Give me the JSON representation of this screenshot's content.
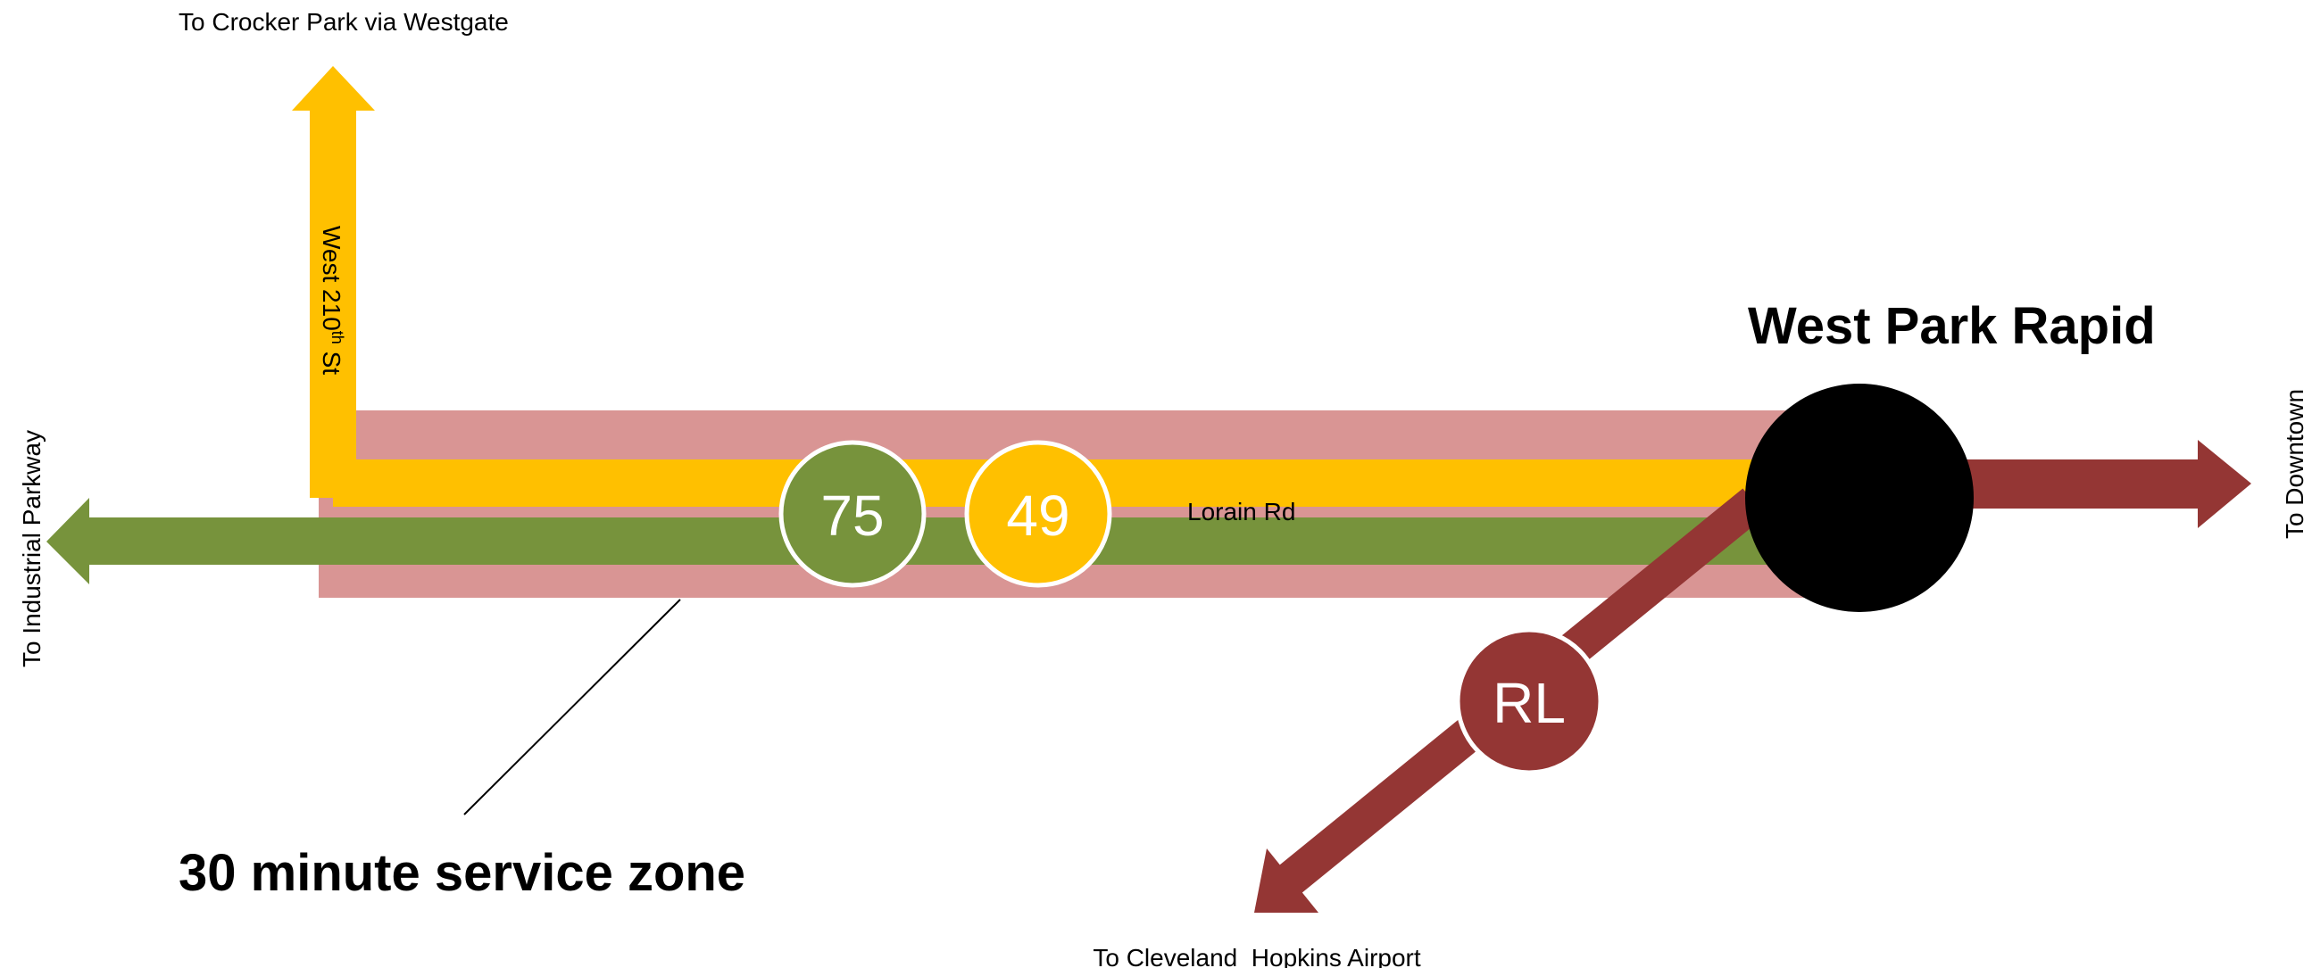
{
  "colors": {
    "background": "#ffffff",
    "service_zone": "#d99594",
    "route_75": "#77933c",
    "route_49": "#ffc000",
    "red_line": "#943634",
    "station": "#000000",
    "badge_border": "#ffffff",
    "text": "#000000"
  },
  "station": {
    "name": "West Park Rapid"
  },
  "zone": {
    "label": "30 minute service zone"
  },
  "streets": {
    "lorain": "Lorain Rd",
    "w210_main": "West 210",
    "w210_sup": "th",
    "w210_suffix": " St"
  },
  "destinations": {
    "crocker": "To Crocker Park via Westgate",
    "industrial": "To Industrial Parkway",
    "downtown": "To Downtown",
    "airport": "To Cleveland  Hopkins Airport"
  },
  "routes": [
    {
      "id": "75",
      "label": "75",
      "color_key": "route_75"
    },
    {
      "id": "49",
      "label": "49",
      "color_key": "route_49"
    },
    {
      "id": "RL",
      "label": "RL",
      "color_key": "red_line"
    }
  ]
}
